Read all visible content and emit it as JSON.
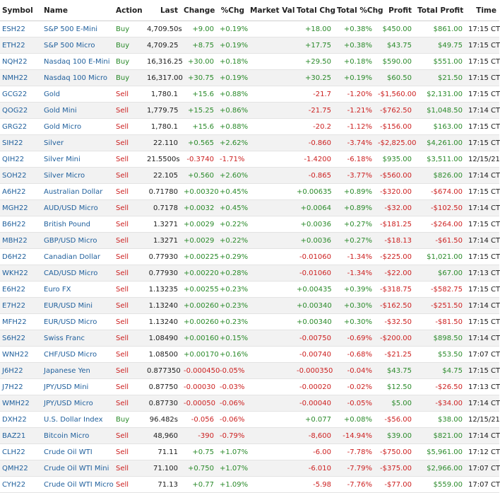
{
  "columns": [
    "Symbol",
    "Name",
    "Action",
    "Last",
    "Change",
    "%Chg",
    "Market Val",
    "Total Chg",
    "Total %Chg",
    "Profit",
    "Total Profit",
    "Time"
  ],
  "colors": {
    "positive": "#2a8a2a",
    "negative": "#cc1f1f",
    "link": "#1f5f9c",
    "alt_row": "#f2f2f2"
  },
  "rows": [
    {
      "symbol": "ESH22",
      "name": "S&P 500 E-Mini",
      "action": "Buy",
      "last": "4,709.50s",
      "change": "+9.00",
      "pct": "+0.19%",
      "market_val": "",
      "total_chg": "+18.00",
      "total_pct": "+0.38%",
      "profit": "$450.00",
      "total_profit": "$861.00",
      "time": "17:15 CT"
    },
    {
      "symbol": "ETH22",
      "name": "S&P 500 Micro",
      "action": "Buy",
      "last": "4,709.25",
      "change": "+8.75",
      "pct": "+0.19%",
      "market_val": "",
      "total_chg": "+17.75",
      "total_pct": "+0.38%",
      "profit": "$43.75",
      "total_profit": "$49.75",
      "time": "17:15 CT"
    },
    {
      "symbol": "NQH22",
      "name": "Nasdaq 100 E-Mini",
      "action": "Buy",
      "last": "16,316.25",
      "change": "+30.00",
      "pct": "+0.18%",
      "market_val": "",
      "total_chg": "+29.50",
      "total_pct": "+0.18%",
      "profit": "$590.00",
      "total_profit": "$551.00",
      "time": "17:15 CT"
    },
    {
      "symbol": "NMH22",
      "name": "Nasdaq 100 Micro",
      "action": "Buy",
      "last": "16,317.00",
      "change": "+30.75",
      "pct": "+0.19%",
      "market_val": "",
      "total_chg": "+30.25",
      "total_pct": "+0.19%",
      "profit": "$60.50",
      "total_profit": "$21.50",
      "time": "17:15 CT"
    },
    {
      "symbol": "GCG22",
      "name": "Gold",
      "action": "Sell",
      "last": "1,780.1",
      "change": "+15.6",
      "pct": "+0.88%",
      "market_val": "",
      "total_chg": "-21.7",
      "total_pct": "-1.20%",
      "profit": "-$1,560.00",
      "total_profit": "$2,131.00",
      "time": "17:15 CT"
    },
    {
      "symbol": "QOG22",
      "name": "Gold Mini",
      "action": "Sell",
      "last": "1,779.75",
      "change": "+15.25",
      "pct": "+0.86%",
      "market_val": "",
      "total_chg": "-21.75",
      "total_pct": "-1.21%",
      "profit": "-$762.50",
      "total_profit": "$1,048.50",
      "time": "17:14 CT"
    },
    {
      "symbol": "GRG22",
      "name": "Gold Micro",
      "action": "Sell",
      "last": "1,780.1",
      "change": "+15.6",
      "pct": "+0.88%",
      "market_val": "",
      "total_chg": "-20.2",
      "total_pct": "-1.12%",
      "profit": "-$156.00",
      "total_profit": "$163.00",
      "time": "17:15 CT"
    },
    {
      "symbol": "SIH22",
      "name": "Silver",
      "action": "Sell",
      "last": "22.110",
      "change": "+0.565",
      "pct": "+2.62%",
      "market_val": "",
      "total_chg": "-0.860",
      "total_pct": "-3.74%",
      "profit": "-$2,825.00",
      "total_profit": "$4,261.00",
      "time": "17:15 CT"
    },
    {
      "symbol": "QIH22",
      "name": "Silver Mini",
      "action": "Sell",
      "last": "21.5500s",
      "change": "-0.3740",
      "pct": "-1.71%",
      "market_val": "",
      "total_chg": "-1.4200",
      "total_pct": "-6.18%",
      "profit": "$935.00",
      "total_profit": "$3,511.00",
      "time": "12/15/21"
    },
    {
      "symbol": "SOH22",
      "name": "Silver Micro",
      "action": "Sell",
      "last": "22.105",
      "change": "+0.560",
      "pct": "+2.60%",
      "market_val": "",
      "total_chg": "-0.865",
      "total_pct": "-3.77%",
      "profit": "-$560.00",
      "total_profit": "$826.00",
      "time": "17:14 CT"
    },
    {
      "symbol": "A6H22",
      "name": "Australian Dollar",
      "action": "Sell",
      "last": "0.71780",
      "change": "+0.00320",
      "pct": "+0.45%",
      "market_val": "",
      "total_chg": "+0.00635",
      "total_pct": "+0.89%",
      "profit": "-$320.00",
      "total_profit": "-$674.00",
      "time": "17:15 CT"
    },
    {
      "symbol": "MGH22",
      "name": "AUD/USD Micro",
      "action": "Sell",
      "last": "0.7178",
      "change": "+0.0032",
      "pct": "+0.45%",
      "market_val": "",
      "total_chg": "+0.0064",
      "total_pct": "+0.89%",
      "profit": "-$32.00",
      "total_profit": "-$102.50",
      "time": "17:14 CT"
    },
    {
      "symbol": "B6H22",
      "name": "British Pound",
      "action": "Sell",
      "last": "1.3271",
      "change": "+0.0029",
      "pct": "+0.22%",
      "market_val": "",
      "total_chg": "+0.0036",
      "total_pct": "+0.27%",
      "profit": "-$181.25",
      "total_profit": "-$264.00",
      "time": "17:15 CT"
    },
    {
      "symbol": "MBH22",
      "name": "GBP/USD Micro",
      "action": "Sell",
      "last": "1.3271",
      "change": "+0.0029",
      "pct": "+0.22%",
      "market_val": "",
      "total_chg": "+0.0036",
      "total_pct": "+0.27%",
      "profit": "-$18.13",
      "total_profit": "-$61.50",
      "time": "17:14 CT"
    },
    {
      "symbol": "D6H22",
      "name": "Canadian Dollar",
      "action": "Sell",
      "last": "0.77930",
      "change": "+0.00225",
      "pct": "+0.29%",
      "market_val": "",
      "total_chg": "-0.01060",
      "total_pct": "-1.34%",
      "profit": "-$225.00",
      "total_profit": "$1,021.00",
      "time": "17:15 CT"
    },
    {
      "symbol": "WKH22",
      "name": "CAD/USD Micro",
      "action": "Sell",
      "last": "0.77930",
      "change": "+0.00220",
      "pct": "+0.28%",
      "market_val": "",
      "total_chg": "-0.01060",
      "total_pct": "-1.34%",
      "profit": "-$22.00",
      "total_profit": "$67.00",
      "time": "17:13 CT"
    },
    {
      "symbol": "E6H22",
      "name": "Euro FX",
      "action": "Sell",
      "last": "1.13235",
      "change": "+0.00255",
      "pct": "+0.23%",
      "market_val": "",
      "total_chg": "+0.00435",
      "total_pct": "+0.39%",
      "profit": "-$318.75",
      "total_profit": "-$582.75",
      "time": "17:15 CT"
    },
    {
      "symbol": "E7H22",
      "name": "EUR/USD Mini",
      "action": "Sell",
      "last": "1.13240",
      "change": "+0.00260",
      "pct": "+0.23%",
      "market_val": "",
      "total_chg": "+0.00340",
      "total_pct": "+0.30%",
      "profit": "-$162.50",
      "total_profit": "-$251.50",
      "time": "17:14 CT"
    },
    {
      "symbol": "MFH22",
      "name": "EUR/USD Micro",
      "action": "Sell",
      "last": "1.13240",
      "change": "+0.00260",
      "pct": "+0.23%",
      "market_val": "",
      "total_chg": "+0.00340",
      "total_pct": "+0.30%",
      "profit": "-$32.50",
      "total_profit": "-$81.50",
      "time": "17:15 CT"
    },
    {
      "symbol": "S6H22",
      "name": "Swiss Franc",
      "action": "Sell",
      "last": "1.08490",
      "change": "+0.00160",
      "pct": "+0.15%",
      "market_val": "",
      "total_chg": "-0.00750",
      "total_pct": "-0.69%",
      "profit": "-$200.00",
      "total_profit": "$898.50",
      "time": "17:14 CT"
    },
    {
      "symbol": "WNH22",
      "name": "CHF/USD Micro",
      "action": "Sell",
      "last": "1.08500",
      "change": "+0.00170",
      "pct": "+0.16%",
      "market_val": "",
      "total_chg": "-0.00740",
      "total_pct": "-0.68%",
      "profit": "-$21.25",
      "total_profit": "$53.50",
      "time": "17:07 CT"
    },
    {
      "symbol": "J6H22",
      "name": "Japanese Yen",
      "action": "Sell",
      "last": "0.877350",
      "change": "-0.000450",
      "pct": "-0.05%",
      "market_val": "",
      "total_chg": "-0.000350",
      "total_pct": "-0.04%",
      "profit": "$43.75",
      "total_profit": "$4.75",
      "time": "17:15 CT"
    },
    {
      "symbol": "J7H22",
      "name": "JPY/USD Mini",
      "action": "Sell",
      "last": "0.87750",
      "change": "-0.00030",
      "pct": "-0.03%",
      "market_val": "",
      "total_chg": "-0.00020",
      "total_pct": "-0.02%",
      "profit": "$12.50",
      "total_profit": "-$26.50",
      "time": "17:13 CT"
    },
    {
      "symbol": "WMH22",
      "name": "JPY/USD Micro",
      "action": "Sell",
      "last": "0.87730",
      "change": "-0.00050",
      "pct": "-0.06%",
      "market_val": "",
      "total_chg": "-0.00040",
      "total_pct": "-0.05%",
      "profit": "$5.00",
      "total_profit": "-$34.00",
      "time": "17:14 CT"
    },
    {
      "symbol": "DXH22",
      "name": "U.S. Dollar Index",
      "action": "Buy",
      "last": "96.482s",
      "change": "-0.056",
      "pct": "-0.06%",
      "market_val": "",
      "total_chg": "+0.077",
      "total_pct": "+0.08%",
      "profit": "-$56.00",
      "total_profit": "$38.00",
      "time": "12/15/21"
    },
    {
      "symbol": "BAZ21",
      "name": "Bitcoin Micro",
      "action": "Sell",
      "last": "48,960",
      "change": "-390",
      "pct": "-0.79%",
      "market_val": "",
      "total_chg": "-8,600",
      "total_pct": "-14.94%",
      "profit": "$39.00",
      "total_profit": "$821.00",
      "time": "17:14 CT"
    },
    {
      "symbol": "CLH22",
      "name": "Crude Oil WTI",
      "action": "Sell",
      "last": "71.11",
      "change": "+0.75",
      "pct": "+1.07%",
      "market_val": "",
      "total_chg": "-6.00",
      "total_pct": "-7.78%",
      "profit": "-$750.00",
      "total_profit": "$5,961.00",
      "time": "17:12 CT"
    },
    {
      "symbol": "QMH22",
      "name": "Crude Oil WTI Mini",
      "action": "Sell",
      "last": "71.100",
      "change": "+0.750",
      "pct": "+1.07%",
      "market_val": "",
      "total_chg": "-6.010",
      "total_pct": "-7.79%",
      "profit": "-$375.00",
      "total_profit": "$2,966.00",
      "time": "17:07 CT"
    },
    {
      "symbol": "CYH22",
      "name": "Crude Oil WTI Micro",
      "action": "Sell",
      "last": "71.13",
      "change": "+0.77",
      "pct": "+1.09%",
      "market_val": "",
      "total_chg": "-5.98",
      "total_pct": "-7.76%",
      "profit": "-$77.00",
      "total_profit": "$559.00",
      "time": "17:07 CT"
    }
  ]
}
